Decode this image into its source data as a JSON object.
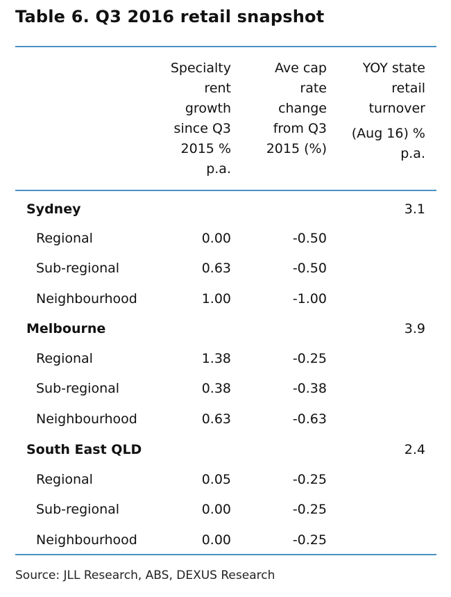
{
  "title": "Table 6. Q3 2016 retail snapshot",
  "headers": {
    "col1": [
      "Specialty",
      "rent",
      "growth",
      "since Q3",
      "2015 %",
      "p.a."
    ],
    "col2": [
      "Ave cap",
      "rate",
      "change",
      "from Q3",
      "2015 (%)"
    ],
    "col3": [
      "YOY state",
      "retail",
      "turnover",
      "(Aug 16) %",
      "p.a."
    ]
  },
  "groups": [
    {
      "name": "Sydney",
      "turnover": "3.1",
      "rows": [
        {
          "label": "Regional",
          "rent": "0.00",
          "cap": "-0.50"
        },
        {
          "label": "Sub-regional",
          "rent": "0.63",
          "cap": "-0.50"
        },
        {
          "label": "Neighbourhood",
          "rent": "1.00",
          "cap": "-1.00"
        }
      ]
    },
    {
      "name": "Melbourne",
      "turnover": "3.9",
      "rows": [
        {
          "label": "Regional",
          "rent": "1.38",
          "cap": "-0.25"
        },
        {
          "label": "Sub-regional",
          "rent": "0.38",
          "cap": "-0.38"
        },
        {
          "label": "Neighbourhood",
          "rent": "0.63",
          "cap": "-0.63"
        }
      ]
    },
    {
      "name": "South East QLD",
      "turnover": "2.4",
      "rows": [
        {
          "label": "Regional",
          "rent": "0.05",
          "cap": "-0.25"
        },
        {
          "label": "Sub-regional",
          "rent": "0.00",
          "cap": "-0.25"
        },
        {
          "label": "Neighbourhood",
          "rent": "0.00",
          "cap": "-0.25"
        }
      ]
    }
  ],
  "source": "Source: JLL Research, ABS, DEXUS Research",
  "colors": {
    "rule": "#4a90c4",
    "text": "#111111"
  }
}
